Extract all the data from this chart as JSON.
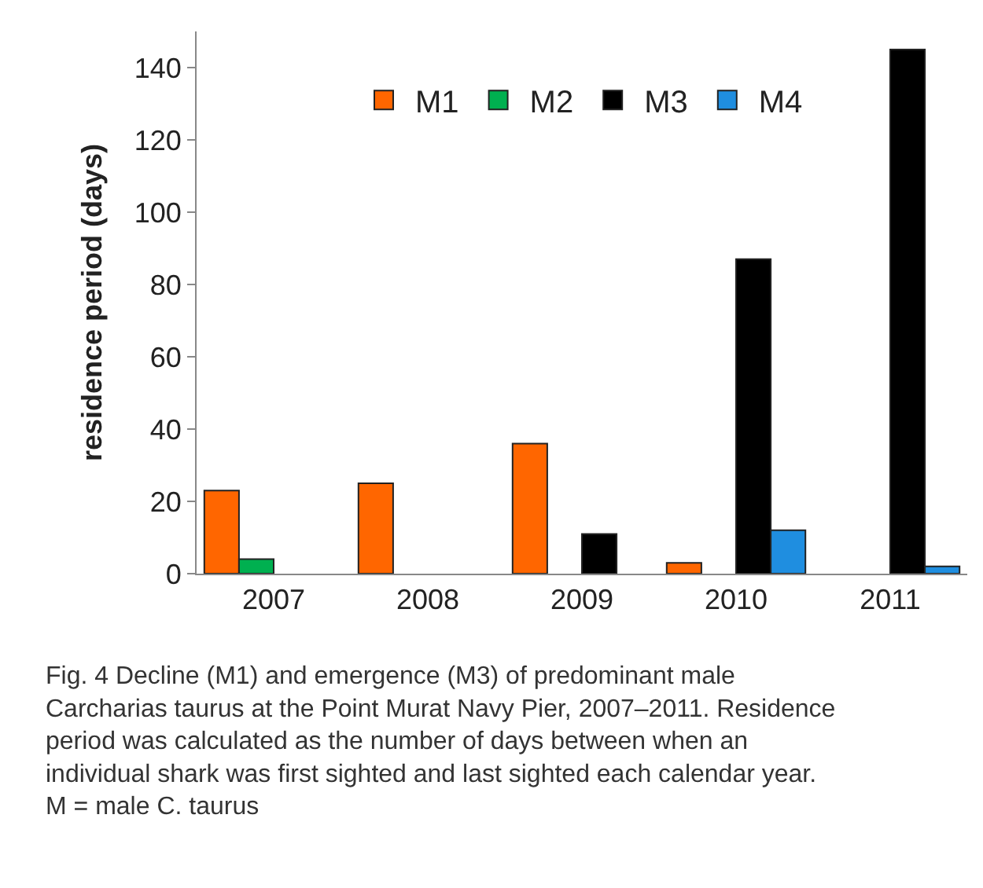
{
  "chart_data": {
    "type": "bar",
    "ylabel": "residence period (days)",
    "categories": [
      "2007",
      "2008",
      "2009",
      "2010",
      "2011"
    ],
    "series": [
      {
        "name": "M1",
        "color": "#ff6600",
        "values": [
          23,
          25,
          36,
          3,
          null
        ]
      },
      {
        "name": "M2",
        "color": "#00b050",
        "values": [
          4,
          null,
          null,
          null,
          null
        ]
      },
      {
        "name": "M3",
        "color": "#000000",
        "values": [
          null,
          null,
          11,
          87,
          145
        ]
      },
      {
        "name": "M4",
        "color": "#1f8ee0",
        "values": [
          null,
          null,
          null,
          12,
          2
        ]
      }
    ],
    "ylim": [
      0,
      150
    ],
    "yticks": [
      0,
      20,
      40,
      60,
      80,
      100,
      120,
      140
    ],
    "legend": "top",
    "annotations": [
      "Fig. 4 Decline (M1) and emergence (M3) of predominant male\nCarcharias taurus at the Point Murat Navy Pier, 2007–2011. Residence\nperiod was calculated as the number of days between when an\nindividual shark was first sighted and last sighted each calendar year.\nM = male C. taurus"
    ]
  }
}
